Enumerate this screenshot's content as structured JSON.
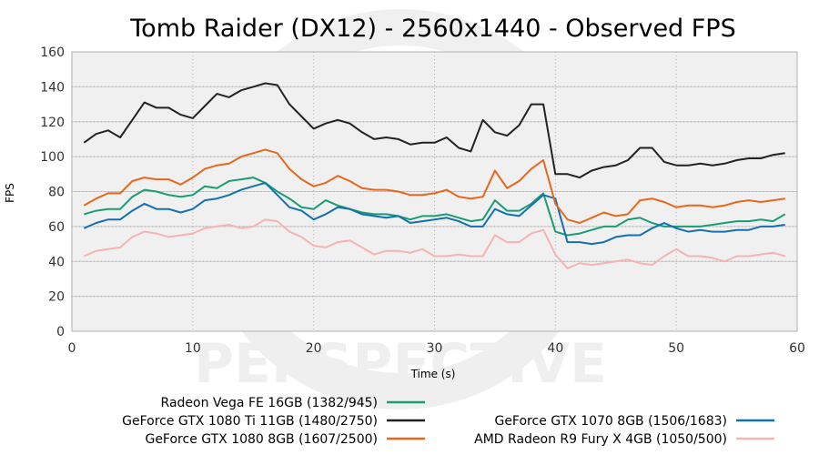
{
  "chart_data": {
    "type": "line",
    "title": "Tomb Raider (DX12) - 2560x1440 - Observed FPS",
    "xlabel": "Time (s)",
    "ylabel": "FPS",
    "xlim": [
      0,
      60
    ],
    "ylim": [
      0,
      160
    ],
    "xticks": [
      "0",
      "10",
      "20",
      "30",
      "40",
      "50",
      "60"
    ],
    "yticks": [
      "0",
      "20",
      "40",
      "60",
      "80",
      "100",
      "120",
      "140",
      "160"
    ],
    "grid": true,
    "legend_position": "bottom",
    "x": [
      1,
      2,
      3,
      4,
      5,
      6,
      7,
      8,
      9,
      10,
      11,
      12,
      13,
      14,
      15,
      16,
      17,
      18,
      19,
      20,
      21,
      22,
      23,
      24,
      25,
      26,
      27,
      28,
      29,
      30,
      31,
      32,
      33,
      34,
      35,
      36,
      37,
      38,
      39,
      40,
      41,
      42,
      43,
      44,
      45,
      46,
      47,
      48,
      49,
      50,
      51,
      52,
      53,
      54,
      55,
      56,
      57,
      58,
      59
    ],
    "series": [
      {
        "name": "Radeon Vega FE 16GB (1382/945)",
        "color": "#1a9c74",
        "values": [
          67,
          69,
          70,
          70,
          77,
          81,
          80,
          78,
          77,
          78,
          83,
          82,
          86,
          87,
          88,
          85,
          80,
          76,
          71,
          70,
          75,
          72,
          70,
          68,
          67,
          67,
          66,
          64,
          66,
          66,
          67,
          65,
          63,
          64,
          75,
          69,
          69,
          73,
          79,
          57,
          55,
          56,
          58,
          60,
          60,
          64,
          65,
          62,
          60,
          60,
          60,
          60,
          61,
          62,
          63,
          63,
          64,
          63,
          67
        ]
      },
      {
        "name": "GeForce GTX 1080 Ti 11GB (1480/2750)",
        "color": "#222222",
        "values": [
          108,
          113,
          115,
          111,
          121,
          131,
          128,
          128,
          124,
          122,
          129,
          136,
          134,
          138,
          140,
          142,
          141,
          130,
          123,
          116,
          119,
          121,
          119,
          114,
          110,
          111,
          110,
          107,
          108,
          108,
          111,
          105,
          103,
          121,
          114,
          112,
          118,
          130,
          130,
          90,
          90,
          88,
          92,
          94,
          95,
          98,
          105,
          105,
          97,
          95,
          95,
          96,
          95,
          96,
          98,
          99,
          99,
          101,
          102
        ]
      },
      {
        "name": "GeForce GTX 1080 8GB (1607/2500)",
        "color": "#e8671c",
        "values": [
          72,
          76,
          79,
          79,
          86,
          88,
          87,
          87,
          84,
          88,
          93,
          95,
          96,
          100,
          102,
          104,
          102,
          93,
          87,
          83,
          85,
          89,
          86,
          82,
          81,
          81,
          80,
          78,
          78,
          79,
          81,
          77,
          76,
          77,
          92,
          82,
          86,
          93,
          98,
          73,
          64,
          62,
          65,
          68,
          66,
          67,
          75,
          76,
          74,
          71,
          72,
          72,
          71,
          72,
          74,
          75,
          74,
          75,
          76
        ]
      },
      {
        "name": "GeForce GTX 1070 8GB (1506/1683)",
        "color": "#1470b0",
        "values": [
          59,
          62,
          64,
          64,
          69,
          73,
          70,
          70,
          68,
          70,
          75,
          76,
          78,
          81,
          83,
          85,
          78,
          71,
          69,
          64,
          67,
          71,
          70,
          67,
          66,
          65,
          66,
          62,
          63,
          64,
          65,
          63,
          60,
          60,
          70,
          67,
          66,
          72,
          78,
          76,
          51,
          51,
          50,
          51,
          54,
          55,
          55,
          59,
          62,
          59,
          57,
          58,
          57,
          57,
          58,
          58,
          60,
          60,
          61
        ]
      },
      {
        "name": "AMD Radeon R9 Fury X 4GB (1050/500)",
        "color": "#f5b3b3",
        "values": [
          43,
          46,
          47,
          48,
          54,
          57,
          56,
          54,
          55,
          56,
          59,
          60,
          61,
          59,
          60,
          64,
          63,
          57,
          54,
          49,
          48,
          51,
          52,
          48,
          44,
          46,
          46,
          45,
          47,
          43,
          43,
          44,
          43,
          43,
          55,
          51,
          51,
          56,
          58,
          44,
          36,
          39,
          38,
          39,
          40,
          41,
          39,
          38,
          43,
          47,
          43,
          43,
          42,
          40,
          43,
          43,
          44,
          45,
          43
        ]
      }
    ]
  }
}
